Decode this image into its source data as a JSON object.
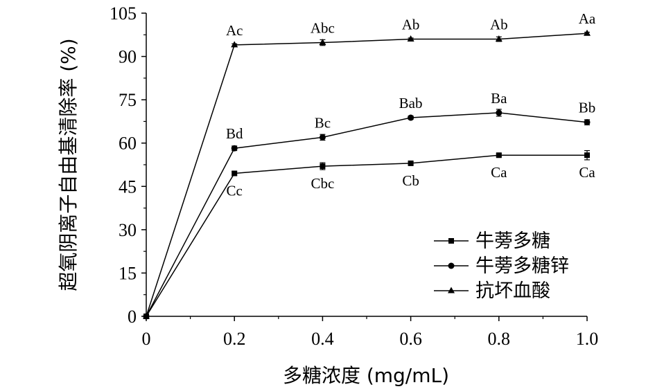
{
  "chart_data": {
    "type": "line",
    "title": "",
    "xlabel": "多糖浓度 (mg/mL)",
    "ylabel": "超氧阴离子自由基清除率 (%)",
    "xlim": [
      0,
      1.0
    ],
    "ylim": [
      0,
      105
    ],
    "x_ticks": [
      "0",
      "0.2",
      "0.4",
      "0.6",
      "0.8",
      "1.0"
    ],
    "y_ticks": [
      "0",
      "15",
      "30",
      "45",
      "60",
      "75",
      "90",
      "105"
    ],
    "x": [
      0,
      0.2,
      0.4,
      0.6,
      0.8,
      1.0
    ],
    "legend_position": "lower-right",
    "grid": false,
    "series": [
      {
        "name": "牛蒡多糖",
        "marker": "square",
        "values": [
          0,
          49.5,
          52,
          53,
          55.8,
          55.8
        ],
        "errors": [
          0,
          0.6,
          1.2,
          0.5,
          0.5,
          1.6
        ],
        "labels": [
          "",
          "Cc",
          "Cbc",
          "Cb",
          "Ca",
          "Ca"
        ],
        "label_side": "below"
      },
      {
        "name": "牛蒡多糖锌",
        "marker": "circle",
        "values": [
          0,
          58.2,
          62,
          68.8,
          70.5,
          67.2
        ],
        "errors": [
          0,
          0.8,
          1.0,
          0.6,
          1.2,
          0.9
        ],
        "labels": [
          "",
          "Bd",
          "Bc",
          "Bab",
          "Ba",
          "Bb"
        ],
        "label_side": "above"
      },
      {
        "name": "抗坏血酸",
        "marker": "triangle",
        "values": [
          0,
          94,
          94.8,
          96,
          96,
          98
        ],
        "errors": [
          0,
          0.4,
          1.0,
          0.4,
          0.8,
          0.4
        ],
        "labels": [
          "",
          "Ac",
          "Abc",
          "Ab",
          "Ab",
          "Aa"
        ],
        "label_side": "above"
      }
    ]
  }
}
